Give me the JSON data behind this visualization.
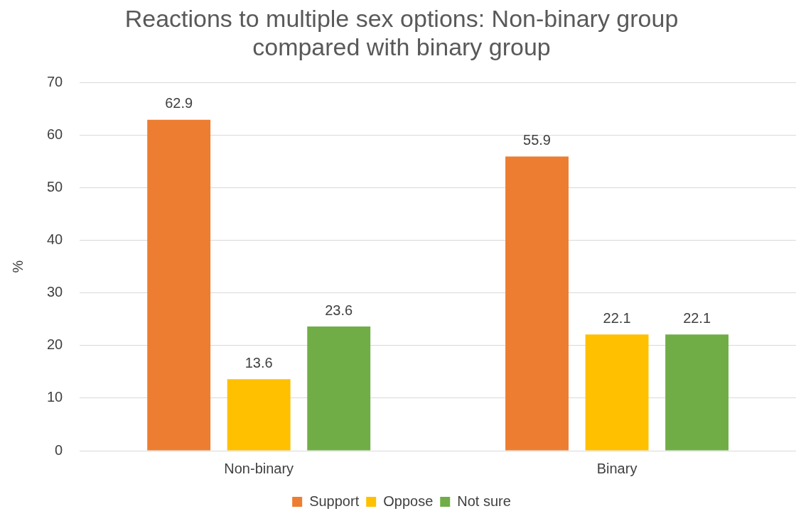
{
  "chart_data": {
    "type": "bar",
    "title": "Reactions to multiple sex options: Non-binary group compared with binary group",
    "ylabel": "%",
    "categories": [
      "Non-binary",
      "Binary"
    ],
    "series": [
      {
        "name": "Support",
        "color": "#ed7d31",
        "values": [
          62.9,
          55.9
        ]
      },
      {
        "name": "Oppose",
        "color": "#ffc000",
        "values": [
          13.6,
          22.1
        ]
      },
      {
        "name": "Not sure",
        "color": "#70ad47",
        "values": [
          23.6,
          22.1
        ]
      }
    ],
    "ylim": [
      0,
      70
    ],
    "yticks": [
      0,
      10,
      20,
      30,
      40,
      50,
      60,
      70
    ],
    "grid": "y",
    "legend": "bottom",
    "data_labels": true
  }
}
